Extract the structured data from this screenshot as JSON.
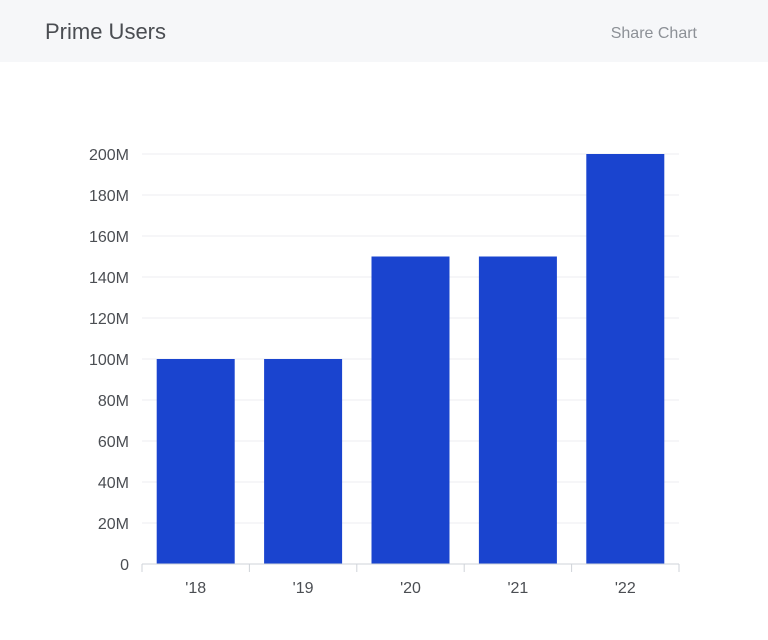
{
  "header": {
    "title": "Prime Users",
    "share_label": "Share Chart"
  },
  "colors": {
    "bar": "#1a44cf",
    "grid": "#eceef1",
    "axis": "#cfd3d8",
    "header_bg": "#f6f7f9"
  },
  "chart_data": {
    "type": "bar",
    "title": "Prime Users",
    "categories": [
      "'18",
      "'19",
      "'20",
      "'21",
      "'22"
    ],
    "values": [
      100,
      100,
      150,
      150,
      200
    ],
    "value_unit": "M",
    "ylim": [
      0,
      200
    ],
    "yticks": [
      0,
      20,
      40,
      60,
      80,
      100,
      120,
      140,
      160,
      180,
      200
    ],
    "ytick_labels": [
      "0",
      "20M",
      "40M",
      "60M",
      "80M",
      "100M",
      "120M",
      "140M",
      "160M",
      "180M",
      "200M"
    ],
    "grid": true,
    "legend": "none"
  }
}
